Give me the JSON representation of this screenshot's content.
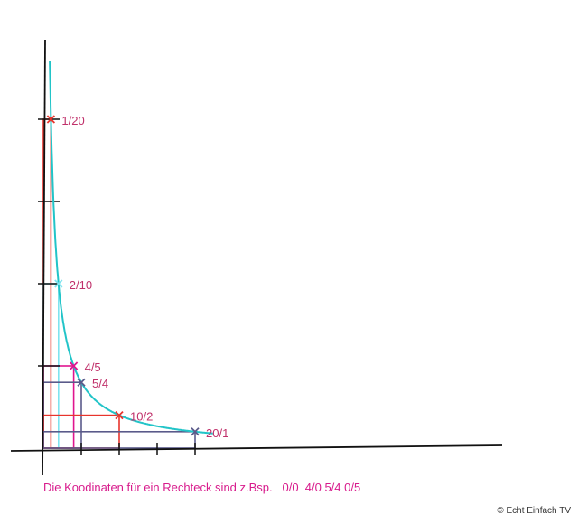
{
  "colors": {
    "axis": "#111111",
    "curve": "#22c4c8",
    "red": "#e8342c",
    "magenta": "#e0158f",
    "cyan_light": "#7fe3ef",
    "slate": "#5a5a8a",
    "label": "#c0306a",
    "caption": "#d81b8c"
  },
  "points": [
    {
      "label": "1/20",
      "x": 1,
      "y": 20,
      "marker": "red"
    },
    {
      "label": "2/10",
      "x": 2,
      "y": 10,
      "marker": "cyan_light"
    },
    {
      "label": "4/5",
      "x": 4,
      "y": 5,
      "marker": "magenta"
    },
    {
      "label": "5/4",
      "x": 5,
      "y": 4,
      "marker": "slate"
    },
    {
      "label": "10/2",
      "x": 10,
      "y": 2,
      "marker": "red"
    },
    {
      "label": "20/1",
      "x": 20,
      "y": 1,
      "marker": "slate"
    }
  ],
  "caption": "Die Koodinaten für ein Rechteck sind z.Bsp.   0/0  4/0 5/4 0/5",
  "credit": "© Echt Einfach TV"
}
